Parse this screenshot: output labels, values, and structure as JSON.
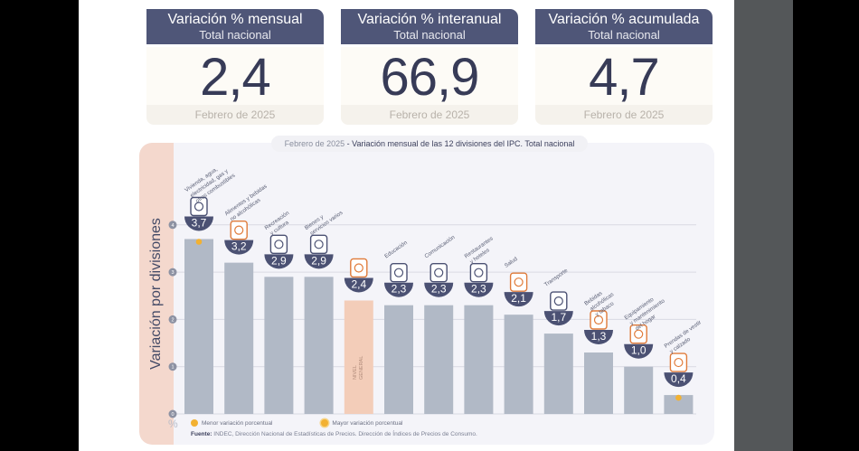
{
  "kpi_cards": [
    {
      "title": "Variación % mensual",
      "subtitle": "Total nacional",
      "value": "2,4",
      "period": "Febrero de 2025"
    },
    {
      "title": "Variación % interanual",
      "subtitle": "Total nacional",
      "value": "66,9",
      "period": "Febrero de 2025"
    },
    {
      "title": "Variación % acumulada",
      "subtitle": "Total nacional",
      "value": "4,7",
      "period": "Febrero de 2025"
    }
  ],
  "chart_data": {
    "type": "bar",
    "title_date": "Febrero de 2025",
    "title": " - Variación mensual de las 12 divisiones del IPC. Total nacional",
    "ylabel": "Variación por divisiones",
    "yunit": "%",
    "ylim": [
      0,
      4
    ],
    "yticks": [
      0,
      1,
      2,
      3,
      4
    ],
    "grid": true,
    "categories": [
      "Vivienda, agua, electricidad, gas y otros combustibles",
      "Alimentos y bebidas no alcohólicas",
      "Recreación y cultura",
      "Bienes y servicios varios",
      "Nivel general",
      "Educación",
      "Comunicación",
      "Restaurantes y hoteles",
      "Salud",
      "Transporte",
      "Bebidas alcohólicas y tabaco",
      "Equipamiento y mantenimiento del hogar",
      "Prendas de vestir y calzado"
    ],
    "category_labels": [
      [
        "Vivienda, agua,",
        "electricidad, gas y",
        "otros combustibles"
      ],
      [
        "Alimentos y bebidas",
        "no alcohólicas"
      ],
      [
        "Recreación",
        "y cultura"
      ],
      [
        "Bienes y",
        "servicios varios"
      ],
      [],
      [
        "Educación"
      ],
      [
        "Comunicación"
      ],
      [
        "Restaurantes",
        "y hoteles"
      ],
      [
        "Salud"
      ],
      [
        "Transporte"
      ],
      [
        "Bebidas",
        "alcohólicas",
        "y tabaco"
      ],
      [
        "Equipamiento",
        "y mantenimiento",
        "del hogar"
      ],
      [
        "Prendas de vestir",
        "y calzado"
      ]
    ],
    "values": [
      3.7,
      3.2,
      2.9,
      2.9,
      2.4,
      2.3,
      2.3,
      2.3,
      2.1,
      1.7,
      1.3,
      1.0,
      0.4
    ],
    "value_labels": [
      "3,7",
      "3,2",
      "2,9",
      "2,9",
      "2,4",
      "2,3",
      "2,3",
      "2,3",
      "2,1",
      "1,7",
      "1,3",
      "1,0",
      "0,4"
    ],
    "icons": [
      "house-utilities-icon",
      "food-icon",
      "recreation-icon",
      "personal-care-icon",
      "shopping-basket-icon",
      "education-icon",
      "communication-icon",
      "restaurant-icon",
      "health-icon",
      "transport-icon",
      "alcohol-tobacco-icon",
      "household-icon",
      "clothing-icon"
    ],
    "highlight_index": 4,
    "highlight_label": [
      "NIVEL",
      "GENERAL"
    ],
    "max_index": 0,
    "min_index": 12,
    "colors": {
      "bar": "#b1b9c6",
      "highlight": "#f3cdb9",
      "bowl": "#4b5173",
      "marker": "#f2b132",
      "grid": "#d9dae3"
    },
    "legend": [
      {
        "label": "Menor variación porcentual",
        "marker": "dot"
      },
      {
        "label": "Mayor variación porcentual",
        "marker": "ring-dot"
      }
    ],
    "source_label": "Fuente:",
    "source": " INDEC, Dirección Nacional de Estadísticas de Precios. Dirección de Índices de Precios de Consumo."
  }
}
